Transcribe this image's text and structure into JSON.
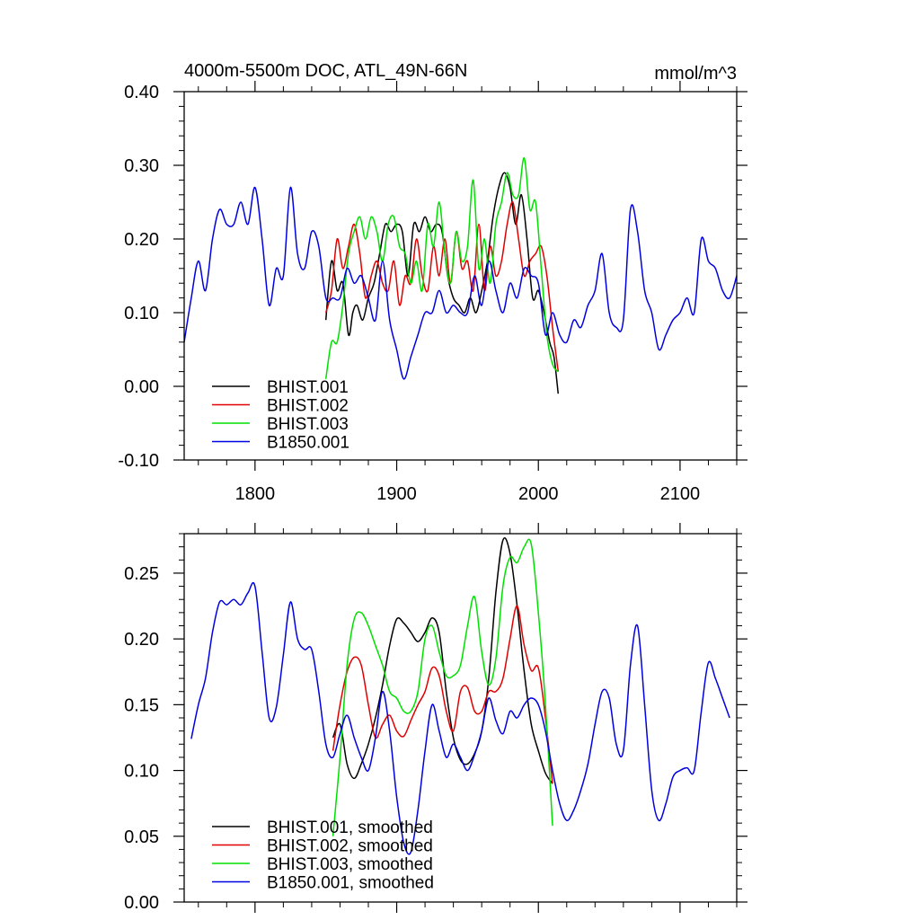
{
  "chart_data": [
    {
      "type": "line",
      "title": "4000m-5500m DOC, ATL_49N-66N",
      "units": "mmol/m^3",
      "xlim": [
        1750,
        2140
      ],
      "ylim": [
        -0.1,
        0.4
      ],
      "x_ticks": [
        1800,
        1900,
        2000,
        2100
      ],
      "x_tick_labels": [
        "1800",
        "1900",
        "2000",
        "2100"
      ],
      "y_ticks": [
        -0.1,
        0.0,
        0.1,
        0.2,
        0.3,
        0.4
      ],
      "y_tick_labels": [
        "-0.10",
        "0.00",
        "0.10",
        "0.20",
        "0.30",
        "0.40"
      ],
      "legend_position": "bottom-left",
      "series": [
        {
          "name": "BHIST.001",
          "color": "#000000",
          "x": [
            1850,
            1854,
            1858,
            1862,
            1866,
            1869,
            1872,
            1876,
            1880,
            1884,
            1888,
            1892,
            1896,
            1900,
            1904,
            1908,
            1912,
            1916,
            1920,
            1924,
            1928,
            1932,
            1936,
            1940,
            1944,
            1948,
            1952,
            1956,
            1960,
            1964,
            1968,
            1972,
            1976,
            1980,
            1984,
            1988,
            1992,
            1996,
            2000,
            2004,
            2008,
            2011,
            2014
          ],
          "y": [
            0.09,
            0.17,
            0.13,
            0.14,
            0.07,
            0.1,
            0.11,
            0.09,
            0.12,
            0.14,
            0.18,
            0.22,
            0.21,
            0.22,
            0.21,
            0.15,
            0.22,
            0.21,
            0.23,
            0.21,
            0.22,
            0.21,
            0.15,
            0.12,
            0.11,
            0.1,
            0.12,
            0.1,
            0.13,
            0.17,
            0.23,
            0.27,
            0.29,
            0.27,
            0.22,
            0.26,
            0.2,
            0.12,
            0.13,
            0.1,
            0.06,
            0.04,
            -0.01
          ]
        },
        {
          "name": "BHIST.002",
          "color": "#e00000",
          "x": [
            1850,
            1854,
            1858,
            1862,
            1866,
            1870,
            1874,
            1878,
            1882,
            1886,
            1890,
            1894,
            1898,
            1902,
            1906,
            1910,
            1914,
            1918,
            1922,
            1926,
            1930,
            1934,
            1938,
            1942,
            1946,
            1950,
            1954,
            1958,
            1962,
            1966,
            1970,
            1974,
            1978,
            1982,
            1986,
            1990,
            1994,
            1998,
            2002,
            2006,
            2010,
            2014
          ],
          "y": [
            0.1,
            0.13,
            0.2,
            0.16,
            0.19,
            0.22,
            0.18,
            0.12,
            0.15,
            0.17,
            0.14,
            0.13,
            0.17,
            0.11,
            0.15,
            0.14,
            0.2,
            0.15,
            0.13,
            0.19,
            0.15,
            0.2,
            0.14,
            0.21,
            0.16,
            0.17,
            0.13,
            0.22,
            0.13,
            0.19,
            0.15,
            0.17,
            0.22,
            0.25,
            0.2,
            0.15,
            0.17,
            0.18,
            0.19,
            0.15,
            0.08,
            0.02
          ]
        },
        {
          "name": "BHIST.003",
          "color": "#00e000",
          "x": [
            1850,
            1854,
            1858,
            1862,
            1866,
            1870,
            1874,
            1878,
            1882,
            1886,
            1890,
            1894,
            1898,
            1902,
            1906,
            1910,
            1914,
            1918,
            1922,
            1926,
            1930,
            1934,
            1938,
            1942,
            1946,
            1950,
            1954,
            1958,
            1962,
            1966,
            1970,
            1974,
            1978,
            1982,
            1986,
            1990,
            1994,
            1998,
            2002,
            2006,
            2010,
            2014
          ],
          "y": [
            0.01,
            0.06,
            0.06,
            0.11,
            0.18,
            0.21,
            0.23,
            0.2,
            0.23,
            0.21,
            0.17,
            0.22,
            0.23,
            0.19,
            0.18,
            0.14,
            0.17,
            0.13,
            0.22,
            0.19,
            0.25,
            0.18,
            0.14,
            0.21,
            0.17,
            0.19,
            0.28,
            0.16,
            0.2,
            0.14,
            0.22,
            0.25,
            0.29,
            0.26,
            0.26,
            0.31,
            0.24,
            0.25,
            0.16,
            0.07,
            0.03,
            0.02
          ]
        },
        {
          "name": "B1850.001",
          "color": "#0000e0",
          "x": [
            1750,
            1755,
            1760,
            1765,
            1770,
            1775,
            1780,
            1785,
            1790,
            1795,
            1800,
            1805,
            1810,
            1815,
            1820,
            1825,
            1830,
            1835,
            1840,
            1845,
            1850,
            1855,
            1860,
            1865,
            1870,
            1875,
            1880,
            1885,
            1890,
            1895,
            1900,
            1905,
            1910,
            1915,
            1920,
            1925,
            1930,
            1935,
            1940,
            1945,
            1950,
            1955,
            1960,
            1965,
            1970,
            1975,
            1980,
            1985,
            1990,
            1995,
            2000,
            2005,
            2010,
            2015,
            2020,
            2025,
            2030,
            2035,
            2040,
            2045,
            2050,
            2055,
            2060,
            2065,
            2070,
            2075,
            2080,
            2085,
            2090,
            2095,
            2100,
            2105,
            2110,
            2115,
            2120,
            2125,
            2130,
            2135,
            2140
          ],
          "y": [
            0.06,
            0.12,
            0.17,
            0.13,
            0.2,
            0.24,
            0.22,
            0.22,
            0.25,
            0.22,
            0.27,
            0.2,
            0.11,
            0.16,
            0.15,
            0.27,
            0.18,
            0.16,
            0.21,
            0.19,
            0.12,
            0.12,
            0.12,
            0.16,
            0.14,
            0.15,
            0.12,
            0.09,
            0.17,
            0.09,
            0.05,
            0.01,
            0.04,
            0.07,
            0.1,
            0.1,
            0.13,
            0.1,
            0.11,
            0.1,
            0.1,
            0.15,
            0.11,
            0.17,
            0.13,
            0.1,
            0.14,
            0.12,
            0.16,
            0.15,
            0.14,
            0.07,
            0.1,
            0.07,
            0.06,
            0.09,
            0.08,
            0.11,
            0.13,
            0.18,
            0.1,
            0.08,
            0.09,
            0.24,
            0.21,
            0.13,
            0.1,
            0.05,
            0.07,
            0.09,
            0.1,
            0.12,
            0.1,
            0.2,
            0.17,
            0.16,
            0.13,
            0.12,
            0.15
          ]
        }
      ]
    },
    {
      "type": "line",
      "title": "",
      "xlim": [
        1750,
        2140
      ],
      "ylim": [
        0.0,
        0.28
      ],
      "x_ticks": [
        1800,
        1900,
        2000,
        2100
      ],
      "y_ticks": [
        0.0,
        0.05,
        0.1,
        0.15,
        0.2,
        0.25
      ],
      "y_tick_labels": [
        "0.00",
        "0.05",
        "0.10",
        "0.15",
        "0.20",
        "0.25"
      ],
      "legend_position": "bottom-left",
      "series": [
        {
          "name": "BHIST.001, smoothed",
          "color": "#000000",
          "x": [
            1855,
            1860,
            1865,
            1870,
            1875,
            1880,
            1885,
            1890,
            1895,
            1900,
            1905,
            1910,
            1915,
            1920,
            1925,
            1930,
            1935,
            1940,
            1945,
            1950,
            1955,
            1960,
            1965,
            1970,
            1975,
            1980,
            1985,
            1990,
            1995,
            2000,
            2005,
            2010
          ],
          "y": [
            0.125,
            0.135,
            0.105,
            0.094,
            0.105,
            0.12,
            0.14,
            0.165,
            0.195,
            0.215,
            0.212,
            0.205,
            0.198,
            0.205,
            0.216,
            0.205,
            0.16,
            0.125,
            0.108,
            0.105,
            0.113,
            0.13,
            0.17,
            0.235,
            0.275,
            0.265,
            0.225,
            0.175,
            0.135,
            0.115,
            0.098,
            0.09
          ]
        },
        {
          "name": "BHIST.002, smoothed",
          "color": "#e00000",
          "x": [
            1855,
            1860,
            1865,
            1870,
            1875,
            1880,
            1885,
            1890,
            1895,
            1900,
            1905,
            1910,
            1915,
            1920,
            1925,
            1930,
            1935,
            1940,
            1945,
            1950,
            1955,
            1960,
            1965,
            1970,
            1975,
            1980,
            1985,
            1990,
            1995,
            2000,
            2005,
            2010
          ],
          "y": [
            0.115,
            0.15,
            0.175,
            0.186,
            0.18,
            0.15,
            0.125,
            0.135,
            0.142,
            0.13,
            0.126,
            0.138,
            0.15,
            0.16,
            0.178,
            0.172,
            0.145,
            0.13,
            0.16,
            0.163,
            0.145,
            0.145,
            0.16,
            0.16,
            0.17,
            0.2,
            0.225,
            0.195,
            0.176,
            0.178,
            0.14,
            0.09
          ]
        },
        {
          "name": "BHIST.003, smoothed",
          "color": "#00e000",
          "x": [
            1855,
            1860,
            1865,
            1870,
            1875,
            1880,
            1885,
            1890,
            1895,
            1900,
            1905,
            1910,
            1915,
            1920,
            1925,
            1930,
            1935,
            1940,
            1945,
            1950,
            1955,
            1960,
            1965,
            1970,
            1975,
            1980,
            1985,
            1990,
            1995,
            2000,
            2005,
            2010
          ],
          "y": [
            0.05,
            0.11,
            0.18,
            0.215,
            0.22,
            0.21,
            0.195,
            0.18,
            0.16,
            0.155,
            0.145,
            0.145,
            0.16,
            0.2,
            0.21,
            0.19,
            0.172,
            0.172,
            0.18,
            0.21,
            0.232,
            0.19,
            0.165,
            0.185,
            0.24,
            0.262,
            0.258,
            0.27,
            0.272,
            0.22,
            0.15,
            0.058
          ]
        },
        {
          "name": "B1850.001, smoothed",
          "color": "#0000e0",
          "x": [
            1755,
            1760,
            1765,
            1770,
            1775,
            1780,
            1785,
            1790,
            1795,
            1800,
            1805,
            1810,
            1815,
            1820,
            1825,
            1830,
            1835,
            1840,
            1845,
            1850,
            1855,
            1860,
            1865,
            1870,
            1875,
            1880,
            1885,
            1890,
            1895,
            1900,
            1905,
            1910,
            1915,
            1920,
            1925,
            1930,
            1935,
            1940,
            1945,
            1950,
            1955,
            1960,
            1965,
            1970,
            1975,
            1980,
            1985,
            1990,
            1995,
            2000,
            2005,
            2010,
            2015,
            2020,
            2025,
            2030,
            2035,
            2040,
            2045,
            2050,
            2055,
            2060,
            2065,
            2070,
            2075,
            2080,
            2085,
            2090,
            2095,
            2100,
            2105,
            2110,
            2115,
            2120,
            2125,
            2130,
            2135
          ],
          "y": [
            0.124,
            0.15,
            0.17,
            0.205,
            0.228,
            0.226,
            0.23,
            0.226,
            0.235,
            0.24,
            0.19,
            0.14,
            0.148,
            0.188,
            0.228,
            0.2,
            0.192,
            0.192,
            0.16,
            0.12,
            0.11,
            0.128,
            0.142,
            0.125,
            0.11,
            0.1,
            0.125,
            0.16,
            0.13,
            0.08,
            0.045,
            0.038,
            0.07,
            0.115,
            0.15,
            0.13,
            0.11,
            0.12,
            0.11,
            0.1,
            0.112,
            0.13,
            0.155,
            0.138,
            0.128,
            0.145,
            0.14,
            0.15,
            0.155,
            0.15,
            0.13,
            0.1,
            0.075,
            0.062,
            0.07,
            0.085,
            0.105,
            0.135,
            0.16,
            0.155,
            0.12,
            0.115,
            0.18,
            0.21,
            0.15,
            0.085,
            0.062,
            0.075,
            0.095,
            0.1,
            0.102,
            0.1,
            0.145,
            0.182,
            0.17,
            0.155,
            0.14
          ]
        }
      ]
    }
  ]
}
